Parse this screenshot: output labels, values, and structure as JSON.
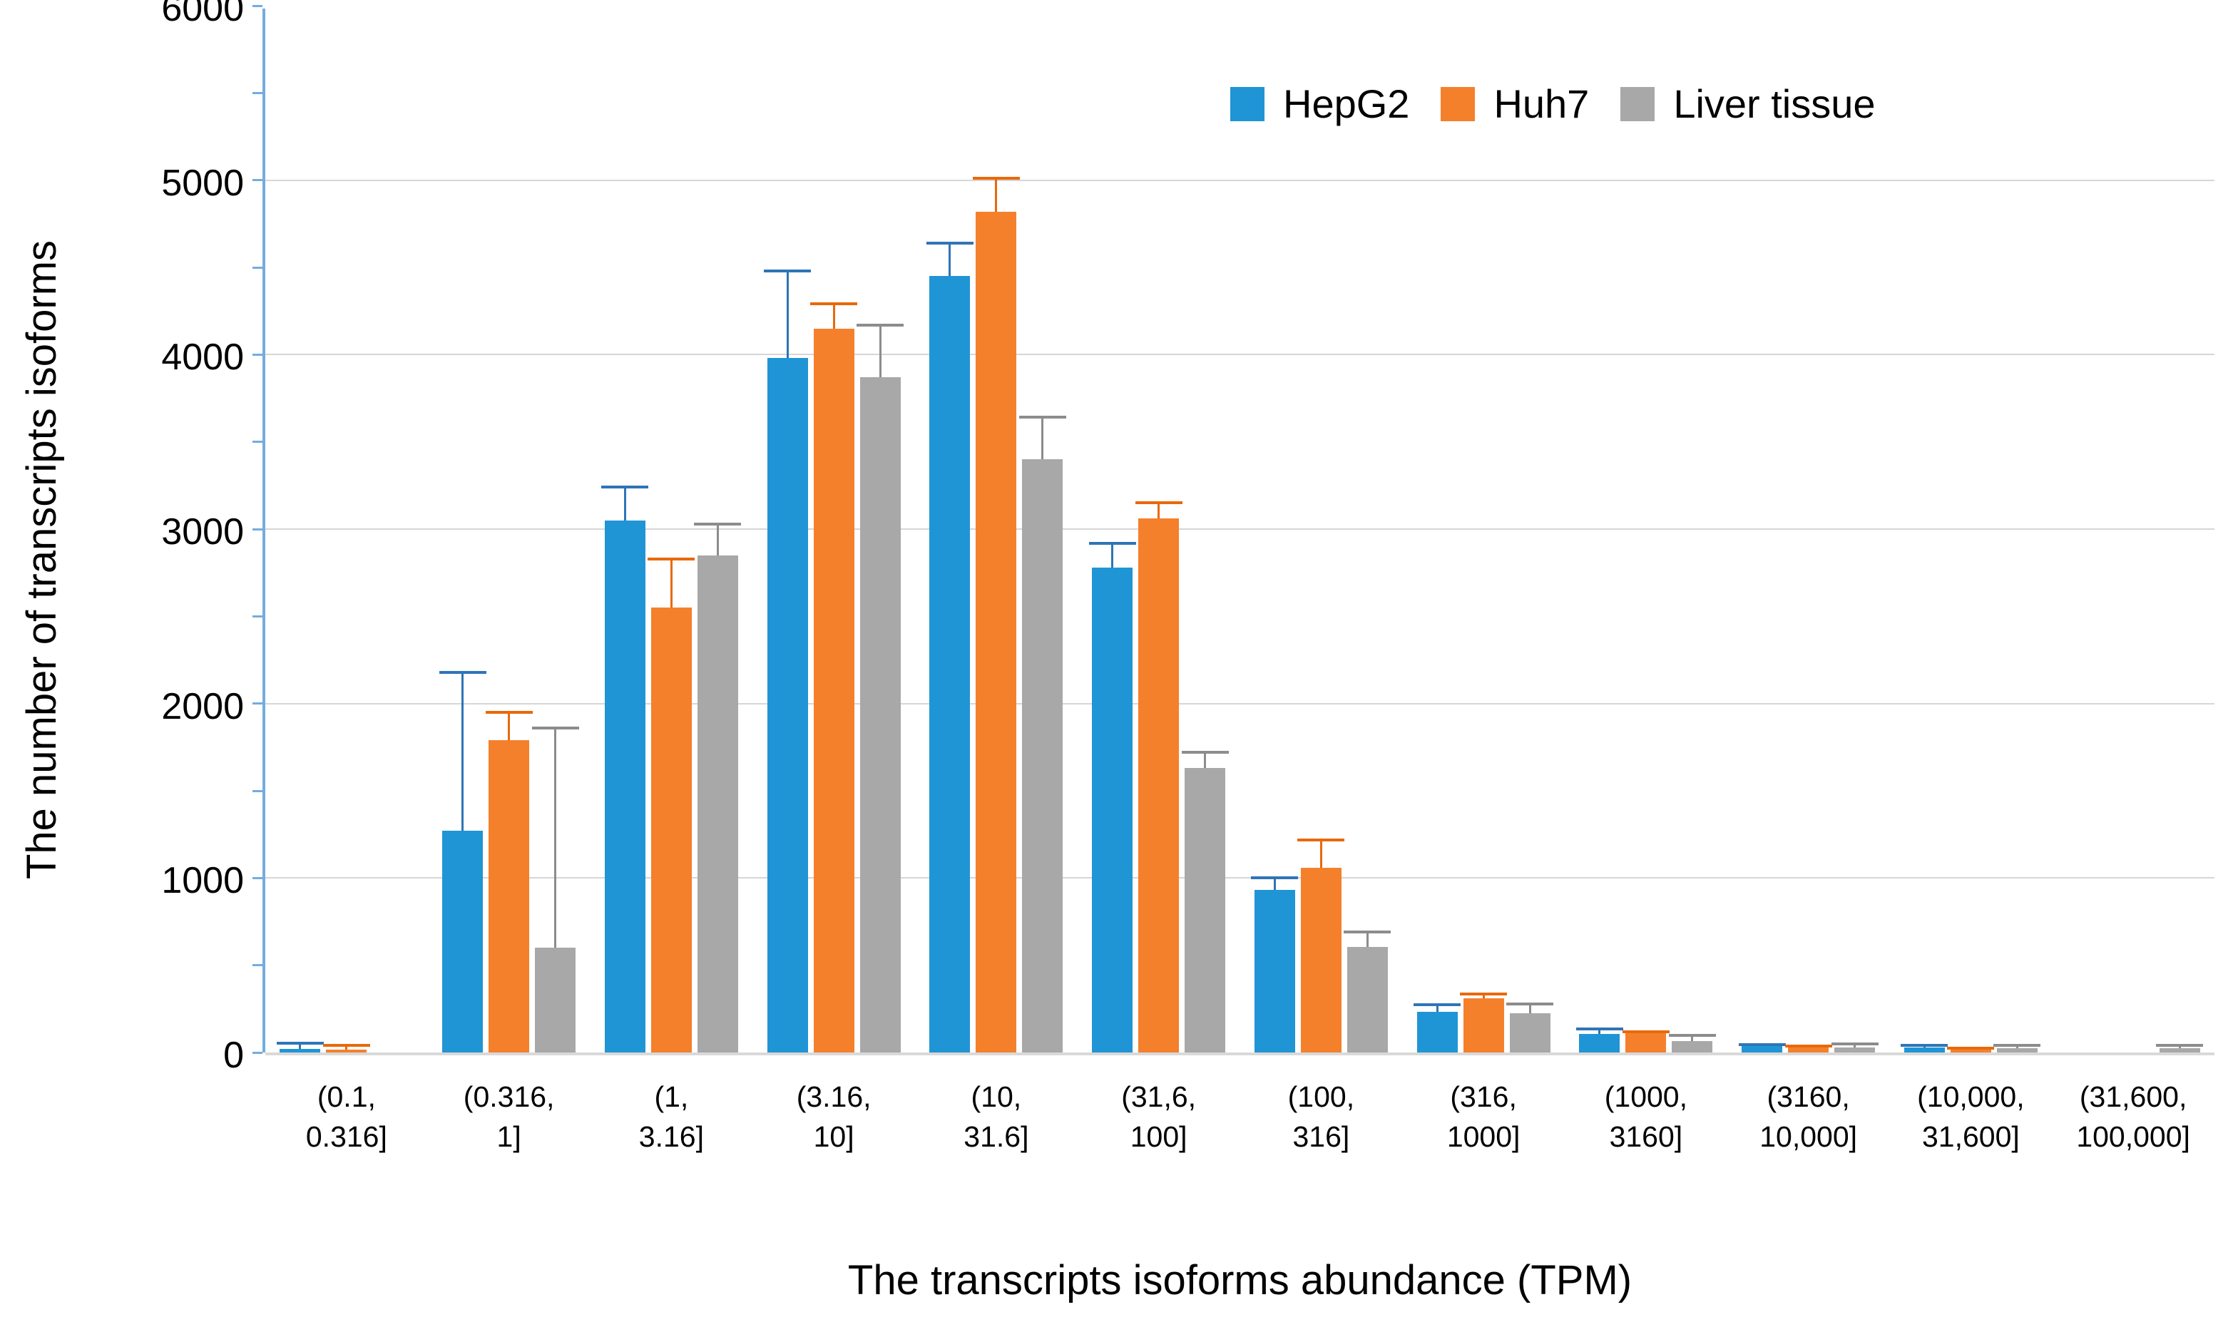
{
  "chart_data": {
    "type": "bar",
    "title": "",
    "xlabel": "The transcripts isoforms abundance (TPM)",
    "ylabel": "The number of transcripts isoforms",
    "ylim": [
      0,
      6000
    ],
    "ytick_step": 1000,
    "minor_tick_step": 500,
    "yticks": [
      0,
      1000,
      2000,
      3000,
      4000,
      5000,
      6000
    ],
    "grid": "horizontal-major",
    "legend_position": "top-right",
    "axis_color": "#74acdf",
    "gridline_color": "#d6d6d6",
    "baseline_color": "#d9d9d9",
    "categories": [
      "(0.1, 0.316]",
      "(0.316, 1]",
      "(1, 3.16]",
      "(3.16, 10]",
      "(10, 31.6]",
      "(31,6, 100]",
      "(100, 316]",
      "(316, 1000]",
      "(1000, 3160]",
      "(3160, 10,000]",
      "(10,000, 31,600]",
      "(31,600, 100,000]"
    ],
    "category_lines": [
      "(0.1,\n0.316]",
      "(0.316,\n1]",
      "(1,\n3.16]",
      "(3.16,\n10]",
      "(10,\n31.6]",
      "(31,6,\n100]",
      "(100,\n316]",
      "(316,\n1000]",
      "(1000,\n3160]",
      "(3160,\n10,000]",
      "(10,000,\n31,600]",
      "(31,600,\n100,000]"
    ],
    "series": [
      {
        "name": "HepG2",
        "color": "#2095d5",
        "error_color": "#2e75b6",
        "values": [
          20,
          1270,
          3050,
          3980,
          4450,
          2780,
          930,
          235,
          105,
          35,
          30,
          0
        ],
        "errors": [
          35,
          910,
          190,
          500,
          190,
          140,
          70,
          40,
          30,
          10,
          10,
          0
        ]
      },
      {
        "name": "Huh7",
        "color": "#f5802c",
        "error_color": "#e8690b",
        "values": [
          15,
          1790,
          2550,
          4150,
          4820,
          3060,
          1060,
          310,
          110,
          30,
          20,
          0
        ],
        "errors": [
          25,
          160,
          280,
          140,
          190,
          90,
          160,
          25,
          10,
          5,
          5,
          0
        ]
      },
      {
        "name": "Liver tissue",
        "color": "#a8a8a8",
        "error_color": "#8c8c8c",
        "values": [
          0,
          600,
          2850,
          3870,
          3400,
          1630,
          605,
          225,
          65,
          30,
          25,
          25
        ],
        "errors": [
          0,
          1260,
          180,
          300,
          240,
          90,
          85,
          55,
          35,
          20,
          15,
          15
        ]
      }
    ]
  }
}
